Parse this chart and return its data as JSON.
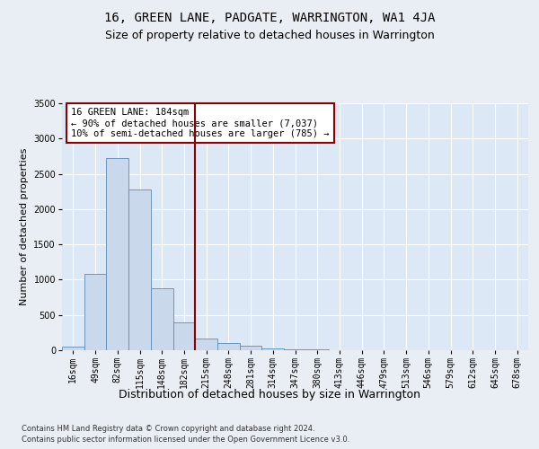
{
  "title": "16, GREEN LANE, PADGATE, WARRINGTON, WA1 4JA",
  "subtitle": "Size of property relative to detached houses in Warrington",
  "xlabel": "Distribution of detached houses by size in Warrington",
  "ylabel": "Number of detached properties",
  "categories": [
    "16sqm",
    "49sqm",
    "82sqm",
    "115sqm",
    "148sqm",
    "182sqm",
    "215sqm",
    "248sqm",
    "281sqm",
    "314sqm",
    "347sqm",
    "380sqm",
    "413sqm",
    "446sqm",
    "479sqm",
    "513sqm",
    "546sqm",
    "579sqm",
    "612sqm",
    "645sqm",
    "678sqm"
  ],
  "values": [
    50,
    1080,
    2720,
    2280,
    880,
    400,
    170,
    100,
    70,
    30,
    15,
    10,
    5,
    5,
    3,
    3,
    2,
    2,
    1,
    1,
    0
  ],
  "bar_color": "#c9d9eb",
  "bar_edge_color": "#5b8db8",
  "vline_x": 5.5,
  "vline_color": "#8b0000",
  "annotation_line1": "16 GREEN LANE: 184sqm",
  "annotation_line2": "← 90% of detached houses are smaller (7,037)",
  "annotation_line3": "10% of semi-detached houses are larger (785) →",
  "annotation_box_color": "#ffffff",
  "annotation_box_edge": "#8b0000",
  "ylim": [
    0,
    3500
  ],
  "yticks": [
    0,
    500,
    1000,
    1500,
    2000,
    2500,
    3000,
    3500
  ],
  "bg_color": "#e8eef4",
  "plot_bg_color": "#dce8f5",
  "footer_line1": "Contains HM Land Registry data © Crown copyright and database right 2024.",
  "footer_line2": "Contains public sector information licensed under the Open Government Licence v3.0.",
  "title_fontsize": 10,
  "subtitle_fontsize": 9,
  "xlabel_fontsize": 9,
  "ylabel_fontsize": 8,
  "tick_fontsize": 7,
  "annotation_fontsize": 7.5,
  "footer_fontsize": 6
}
